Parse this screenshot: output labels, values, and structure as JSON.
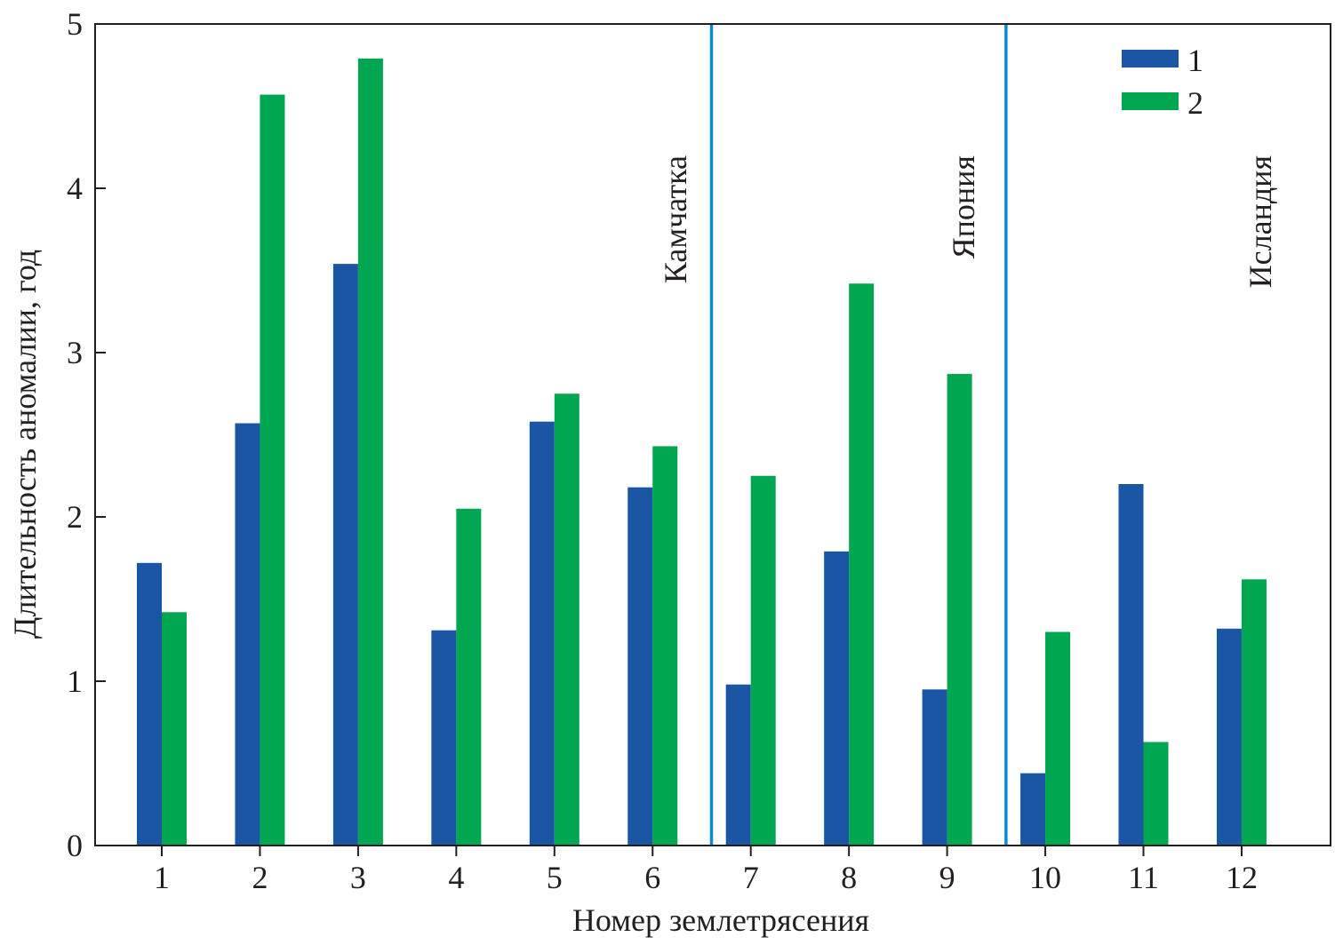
{
  "chart_data": {
    "type": "bar",
    "title": "",
    "xlabel": "Номер землетрясения",
    "ylabel": "Длительность аномалии, год",
    "ylim": [
      0,
      5
    ],
    "yticks": [
      "0",
      "1",
      "2",
      "3",
      "4",
      "5"
    ],
    "categories": [
      "1",
      "2",
      "3",
      "4",
      "5",
      "6",
      "7",
      "8",
      "9",
      "10",
      "11",
      "12"
    ],
    "series": [
      {
        "name": "1",
        "color": "#1b56a5",
        "values": [
          1.72,
          2.57,
          3.54,
          1.31,
          2.58,
          2.18,
          0.98,
          1.79,
          0.95,
          0.44,
          2.2,
          1.32
        ]
      },
      {
        "name": "2",
        "color": "#00a650",
        "values": [
          1.42,
          4.57,
          4.79,
          2.05,
          2.75,
          2.43,
          2.25,
          3.42,
          2.87,
          1.3,
          0.63,
          1.62
        ]
      }
    ],
    "separators": {
      "color": "#0a8bd1",
      "positions": [
        6.6,
        9.6
      ]
    },
    "regions": [
      "Камчатка",
      "Япония",
      "Исландия"
    ],
    "legend": "top-right",
    "grid": false
  }
}
